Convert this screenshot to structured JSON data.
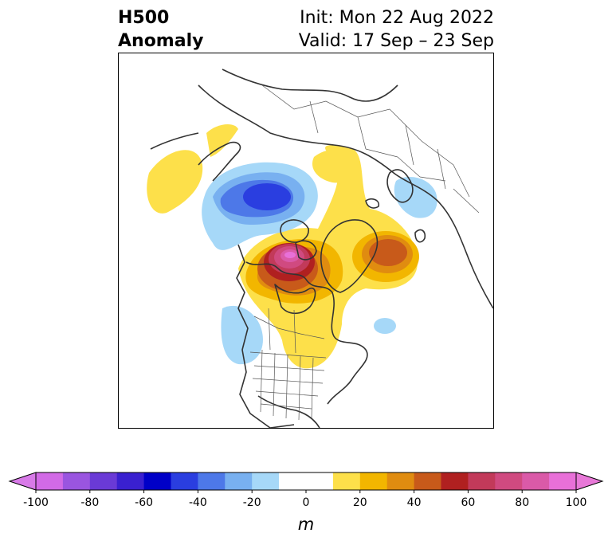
{
  "header": {
    "title_line1": "H500",
    "title_line2": "Anomaly",
    "init": "Init: Mon 22 Aug 2022",
    "valid": "Valid: 17 Sep – 23 Sep"
  },
  "colorbar": {
    "unit": "m",
    "range": [
      -100,
      100
    ],
    "step": 10,
    "extend": "both",
    "ticks": [
      "-100",
      "-80",
      "-60",
      "-40",
      "-20",
      "0",
      "20",
      "40",
      "60",
      "80",
      "100"
    ],
    "colors": [
      "#d26ae6",
      "#9a55e0",
      "#6a3ad6",
      "#3a20d0",
      "#0000c8",
      "#2a3ee0",
      "#4d78e8",
      "#78b0f0",
      "#a6d8f8",
      "#ffffff",
      "#ffffff",
      "#fde04a",
      "#f2b600",
      "#e08c10",
      "#c85a1a",
      "#b02020",
      "#c23a5a",
      "#d04a80",
      "#da5aa8",
      "#e870d8"
    ],
    "under_color": "#d87ae8",
    "over_color": "#e878d8"
  },
  "map": {
    "projection": "north-polar-stereographic",
    "features": [
      "coastlines",
      "country-borders",
      "state-borders"
    ],
    "anomaly_centers": [
      {
        "region": "Canadian Arctic Archipelago",
        "sign": "positive",
        "peak_m": 100
      },
      {
        "region": "Greenland / Baffin Bay",
        "sign": "positive",
        "peak_m": 60
      },
      {
        "region": "Siberia",
        "sign": "negative",
        "peak_m": -60
      },
      {
        "region": "Eastern Europe",
        "sign": "negative",
        "peak_m": -20
      },
      {
        "region": "Western North America",
        "sign": "negative",
        "peak_m": -20
      },
      {
        "region": "Central Canada / Hudson Bay",
        "sign": "positive",
        "peak_m": 30
      }
    ]
  }
}
